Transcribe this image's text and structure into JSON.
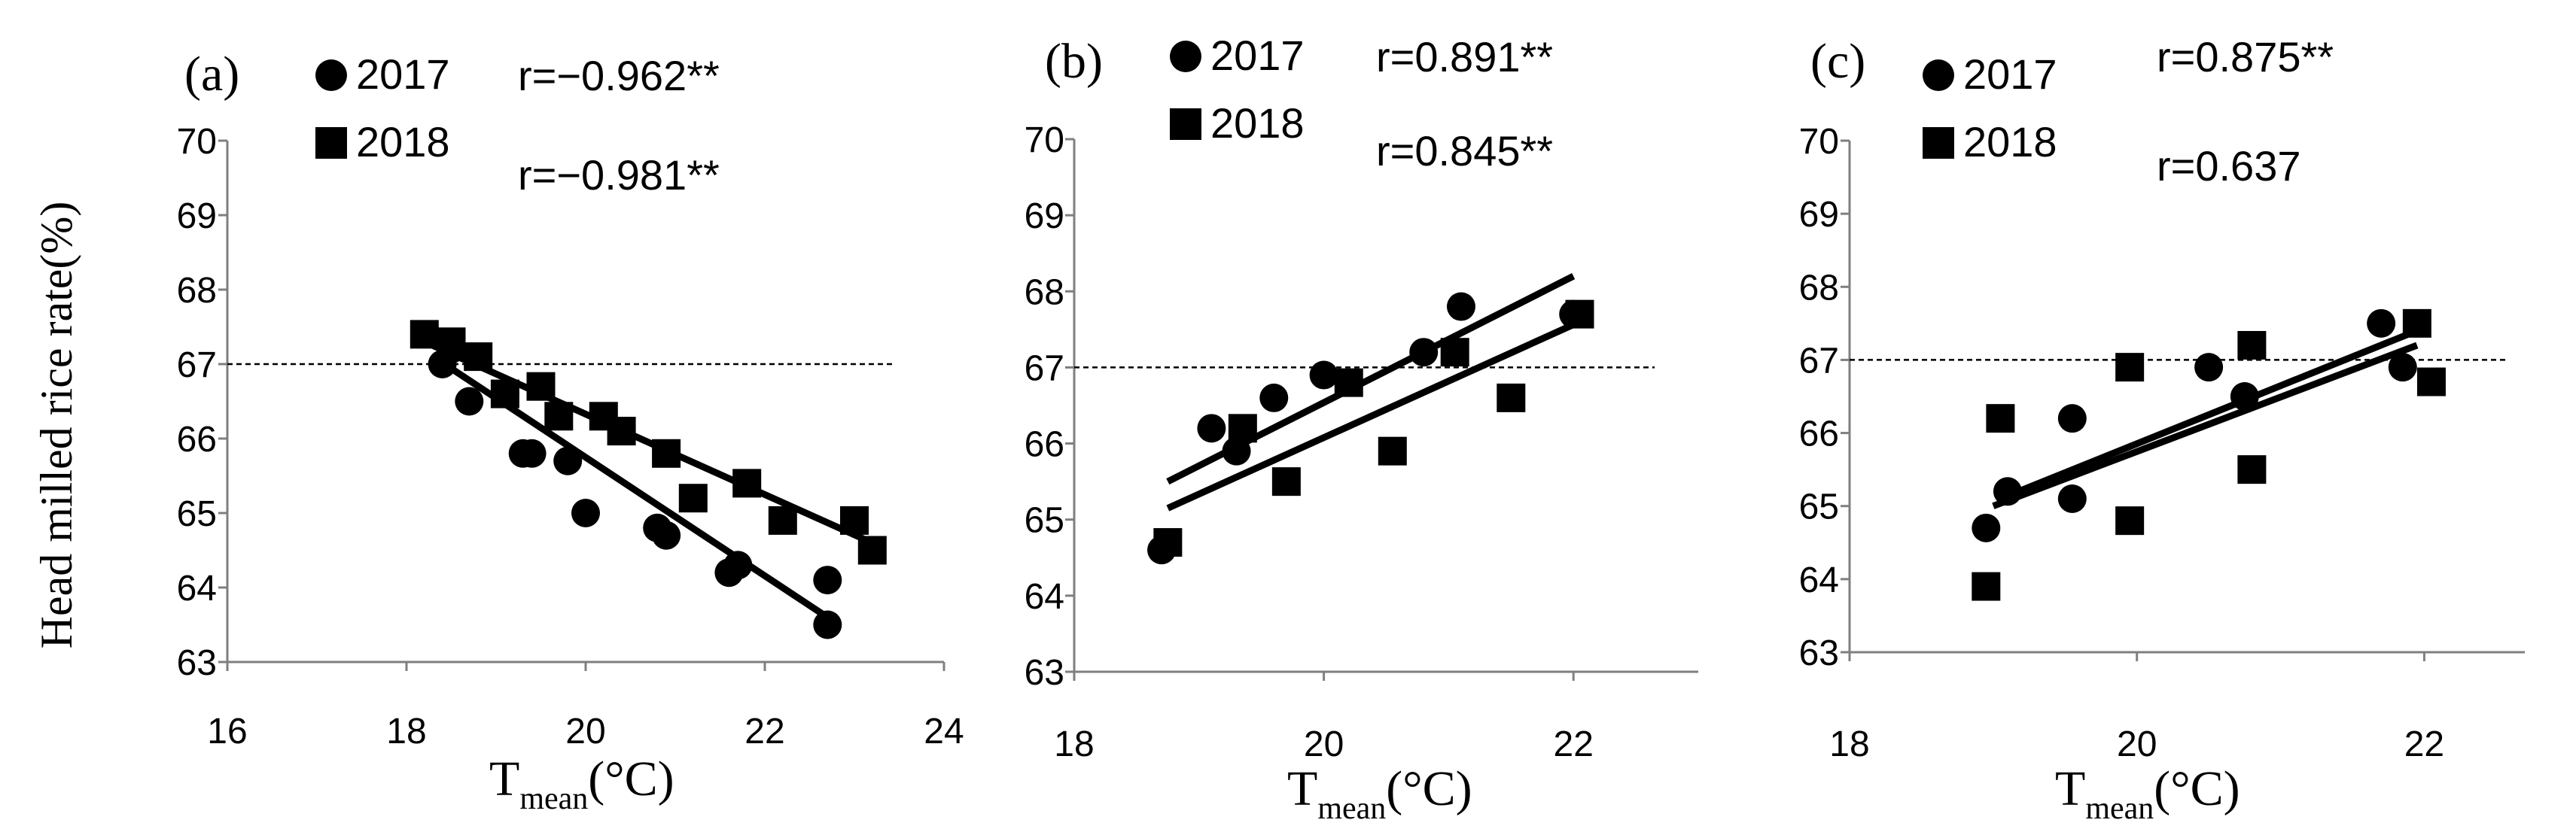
{
  "figure": {
    "y_axis_title": "Head milled rice rate(%)",
    "reference_value": 67
  },
  "chart_data": [
    {
      "type": "scatter",
      "panel_label": "(a)",
      "xlabel_main": "T",
      "xlabel_sub": "mean",
      "xlabel_unit": "(°C)",
      "ylabel": "Head milled rice rate(%)",
      "xlim": [
        16,
        24
      ],
      "ylim": [
        63,
        70
      ],
      "x_ticks": [
        16,
        18,
        20,
        22,
        24
      ],
      "y_ticks": [
        63,
        64,
        65,
        66,
        67,
        68,
        69,
        70
      ],
      "series": [
        {
          "name": "2017",
          "marker": "circle",
          "r_label": "r=−0.962**",
          "points": [
            [
              18.4,
              67.0
            ],
            [
              18.5,
              67.2
            ],
            [
              18.7,
              66.5
            ],
            [
              19.1,
              66.6
            ],
            [
              19.3,
              65.8
            ],
            [
              19.4,
              65.8
            ],
            [
              19.8,
              65.7
            ],
            [
              20.0,
              65.0
            ],
            [
              20.8,
              64.8
            ],
            [
              20.9,
              64.7
            ],
            [
              21.6,
              64.2
            ],
            [
              21.7,
              64.3
            ],
            [
              22.7,
              64.1
            ],
            [
              22.7,
              63.5
            ]
          ],
          "fit": [
            [
              18.3,
              67.1
            ],
            [
              22.7,
              63.6
            ]
          ]
        },
        {
          "name": "2018",
          "marker": "square",
          "r_label": "r=−0.981**",
          "points": [
            [
              18.2,
              67.4
            ],
            [
              18.5,
              67.3
            ],
            [
              18.8,
              67.1
            ],
            [
              19.1,
              66.6
            ],
            [
              19.5,
              66.7
            ],
            [
              19.7,
              66.3
            ],
            [
              20.2,
              66.3
            ],
            [
              20.4,
              66.1
            ],
            [
              20.9,
              65.8
            ],
            [
              21.2,
              65.2
            ],
            [
              21.8,
              65.4
            ],
            [
              22.2,
              64.9
            ],
            [
              23.0,
              64.9
            ],
            [
              23.2,
              64.5
            ]
          ],
          "fit": [
            [
              18.2,
              67.3
            ],
            [
              23.2,
              64.6
            ]
          ]
        }
      ]
    },
    {
      "type": "scatter",
      "panel_label": "(b)",
      "xlabel_main": "T",
      "xlabel_sub": "mean",
      "xlabel_unit": "(°C)",
      "ylabel": "Head milled rice rate(%)",
      "xlim": [
        18,
        23
      ],
      "ylim": [
        63,
        70
      ],
      "x_ticks": [
        18,
        20,
        22
      ],
      "y_ticks": [
        63,
        64,
        65,
        66,
        67,
        68,
        69,
        70
      ],
      "series": [
        {
          "name": "2017",
          "marker": "circle",
          "r_label": "r=0.891**",
          "points": [
            [
              18.7,
              64.6
            ],
            [
              19.1,
              66.2
            ],
            [
              19.3,
              65.9
            ],
            [
              19.6,
              66.6
            ],
            [
              20.0,
              66.9
            ],
            [
              20.8,
              67.2
            ],
            [
              21.1,
              67.8
            ],
            [
              22.0,
              67.7
            ]
          ],
          "fit": [
            [
              18.75,
              65.5
            ],
            [
              22.0,
              68.2
            ]
          ]
        },
        {
          "name": "2018",
          "marker": "square",
          "r_label": "r=0.845**",
          "points": [
            [
              18.75,
              64.7
            ],
            [
              19.35,
              66.2
            ],
            [
              19.7,
              65.5
            ],
            [
              20.2,
              66.8
            ],
            [
              20.55,
              65.9
            ],
            [
              21.05,
              67.2
            ],
            [
              21.5,
              66.6
            ],
            [
              22.05,
              67.7
            ]
          ],
          "fit": [
            [
              18.75,
              65.15
            ],
            [
              22.05,
              67.6
            ]
          ]
        }
      ]
    },
    {
      "type": "scatter",
      "panel_label": "(c)",
      "xlabel_main": "T",
      "xlabel_sub": "mean",
      "xlabel_unit": "(°C)",
      "ylabel": "Head milled rice rate(%)",
      "xlim": [
        18,
        22.7
      ],
      "ylim": [
        63,
        70
      ],
      "x_ticks": [
        18,
        20,
        22
      ],
      "y_ticks": [
        63,
        64,
        65,
        66,
        67,
        68,
        69,
        70
      ],
      "series": [
        {
          "name": "2017",
          "marker": "circle",
          "r_label": "r=0.875**",
          "points": [
            [
              18.95,
              64.7
            ],
            [
              19.1,
              65.2
            ],
            [
              19.55,
              65.1
            ],
            [
              19.55,
              66.2
            ],
            [
              20.5,
              66.9
            ],
            [
              20.75,
              66.5
            ],
            [
              21.7,
              67.5
            ],
            [
              21.85,
              66.9
            ]
          ],
          "fit": [
            [
              19.05,
              65.1
            ],
            [
              21.95,
              67.4
            ]
          ]
        },
        {
          "name": "2018",
          "marker": "square",
          "r_label": "r=0.637",
          "points": [
            [
              18.95,
              63.9
            ],
            [
              19.05,
              66.2
            ],
            [
              19.95,
              66.9
            ],
            [
              19.95,
              64.8
            ],
            [
              20.8,
              67.2
            ],
            [
              20.8,
              65.5
            ],
            [
              21.95,
              67.5
            ],
            [
              22.05,
              66.7
            ]
          ],
          "fit": [
            [
              19.0,
              65.0
            ],
            [
              21.95,
              67.2
            ]
          ]
        }
      ]
    }
  ]
}
